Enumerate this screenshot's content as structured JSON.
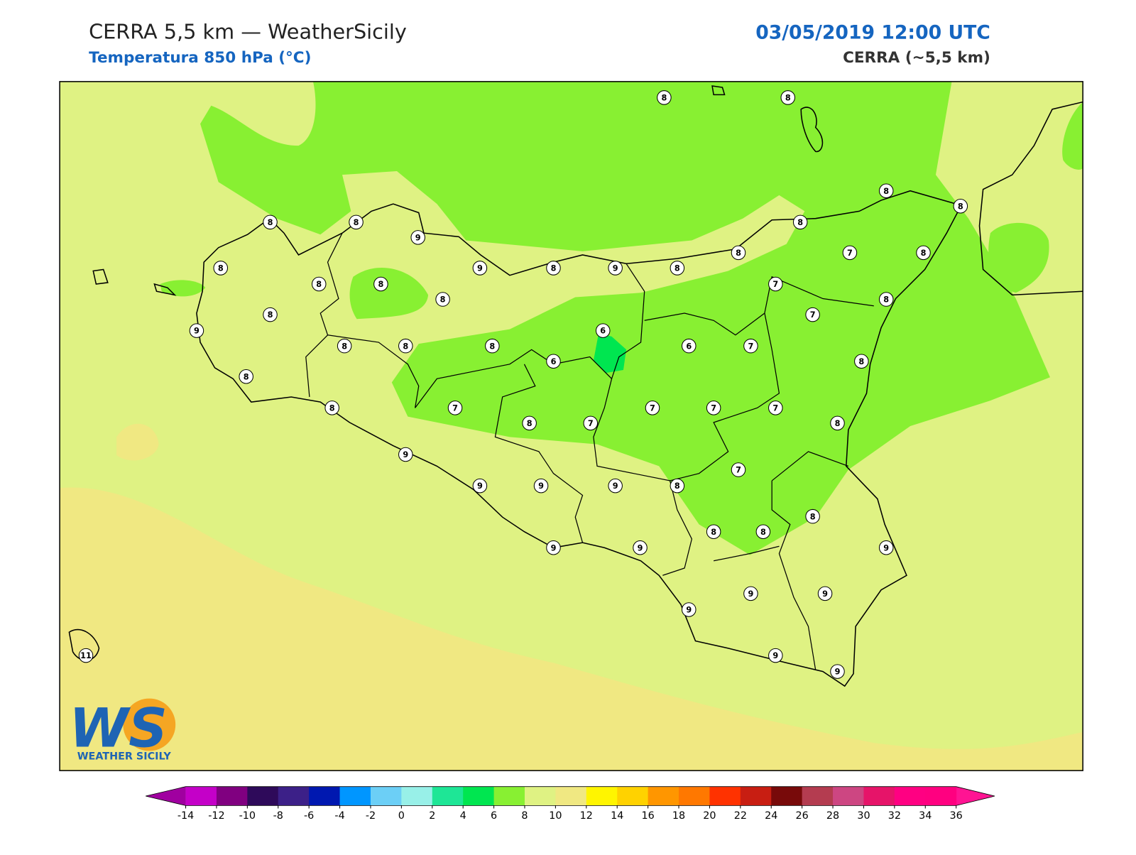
{
  "header": {
    "title": "CERRA 5,5 km — WeatherSicily",
    "subtitle": "Temperatura 850 hPa (°C)",
    "datetime": "03/05/2019 12:00 UTC",
    "model": "CERRA (~5,5 km)"
  },
  "stations": [
    8,
    8,
    8,
    8,
    9,
    8,
    8,
    8,
    8,
    9,
    8,
    9,
    8,
    8,
    8,
    8,
    8,
    7,
    8,
    7,
    8,
    7,
    8,
    9,
    8,
    8,
    8,
    6,
    6,
    6,
    7,
    8,
    8,
    8,
    7,
    8,
    7,
    7,
    7,
    7,
    8,
    9,
    7,
    9,
    9,
    9,
    8,
    8,
    8,
    8,
    9,
    9,
    9,
    9,
    9,
    9,
    9,
    9,
    11
  ],
  "logo": {
    "mark": "WS",
    "text": "WEATHER SICILY"
  },
  "colorbar": {
    "ticks": [
      -14,
      -12,
      -10,
      -8,
      -6,
      -4,
      -2,
      0,
      2,
      4,
      6,
      8,
      10,
      12,
      14,
      16,
      18,
      20,
      22,
      24,
      26,
      28,
      30,
      32,
      34,
      36
    ],
    "colors": [
      "#c400c8",
      "#800080",
      "#2e0a5a",
      "#3c2088",
      "#0018b0",
      "#0096ff",
      "#6ccff6",
      "#98f0e8",
      "#1ee696",
      "#00e650",
      "#88f032",
      "#dff283",
      "#f0e882",
      "#fff500",
      "#ffd200",
      "#ff9600",
      "#ff7800",
      "#ff3200",
      "#c81e12",
      "#780a0a",
      "#b43c50",
      "#cd4682",
      "#e61469",
      "#ff0082",
      "#ff0080"
    ],
    "under": "#a000a0",
    "over": "#ff1493"
  }
}
